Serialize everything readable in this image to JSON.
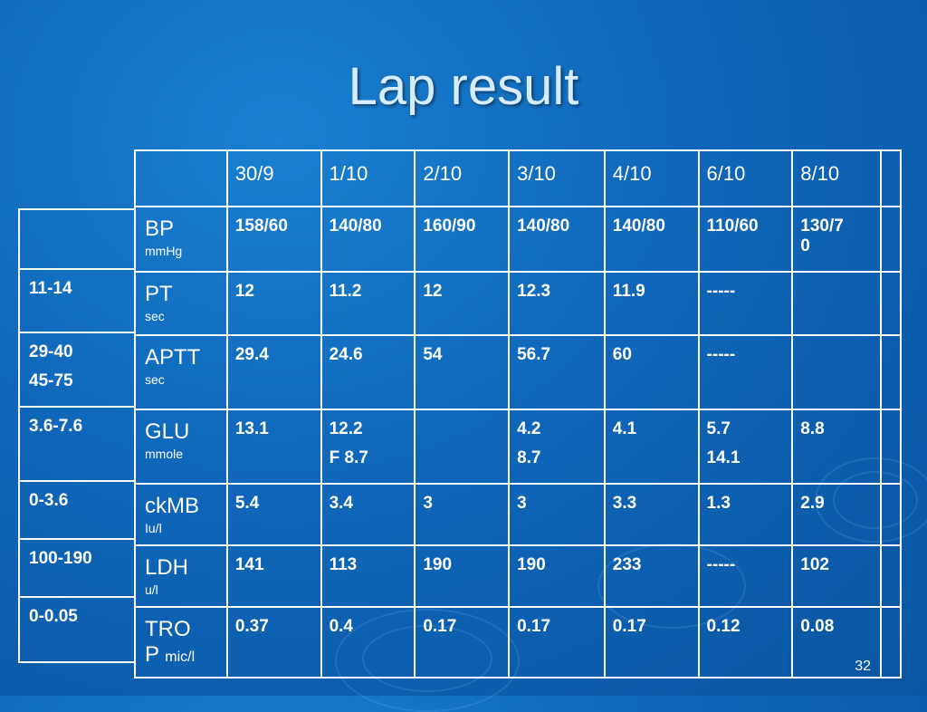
{
  "title": "Lap result",
  "page_number": "32",
  "reference": {
    "rows": [
      [
        ""
      ],
      [
        "11-14"
      ],
      [
        "29-40",
        "45-75"
      ],
      [
        "3.6-7.6"
      ],
      [
        "0-3.6"
      ],
      [
        "100-190"
      ],
      [
        "0-0.05"
      ]
    ]
  },
  "table": {
    "headers": [
      "",
      "30/9",
      "1/10",
      "2/10",
      "3/10",
      "4/10",
      "6/10",
      "8/10",
      ""
    ],
    "rows": [
      {
        "label": "BP",
        "unit": "mmHg",
        "cells": [
          [
            "158/60"
          ],
          [
            "140/80"
          ],
          [
            "160/90"
          ],
          [
            "140/80"
          ],
          [
            "140/80"
          ],
          [
            "110/60"
          ],
          [
            "130/7",
            "0"
          ],
          [
            ""
          ]
        ]
      },
      {
        "label": "PT",
        "unit": "sec",
        "cells": [
          [
            "12"
          ],
          [
            "11.2"
          ],
          [
            "12"
          ],
          [
            "12.3"
          ],
          [
            "11.9"
          ],
          [
            "-----"
          ],
          [
            ""
          ],
          [
            ""
          ]
        ]
      },
      {
        "label": "APTT",
        "unit": "sec",
        "cells": [
          [
            "29.4"
          ],
          [
            "24.6"
          ],
          [
            "54"
          ],
          [
            "56.7"
          ],
          [
            "60"
          ],
          [
            "-----"
          ],
          [
            ""
          ],
          [
            ""
          ]
        ]
      },
      {
        "label": "GLU",
        "unit": "mmole",
        "cells": [
          [
            "13.1"
          ],
          [
            "12.2",
            "F 8.7"
          ],
          [
            ""
          ],
          [
            "4.2",
            "8.7"
          ],
          [
            "4.1"
          ],
          [
            "5.7",
            "14.1"
          ],
          [
            "8.8"
          ],
          [
            ""
          ]
        ]
      },
      {
        "label": "ckMB",
        "unit": "Iu/l",
        "cells": [
          [
            "5.4"
          ],
          [
            "3.4"
          ],
          [
            "3"
          ],
          [
            "3"
          ],
          [
            "3.3"
          ],
          [
            "1.3"
          ],
          [
            "2.9"
          ],
          [
            ""
          ]
        ]
      },
      {
        "label": "LDH",
        "unit": "u/l",
        "cells": [
          [
            "141"
          ],
          [
            "113"
          ],
          [
            "190"
          ],
          [
            "190"
          ],
          [
            "233"
          ],
          [
            "-----"
          ],
          [
            "102"
          ],
          [
            ""
          ]
        ]
      },
      {
        "label": "TRO",
        "label_line2": "P",
        "unit": "mic/l",
        "cells": [
          [
            "0.37"
          ],
          [
            "0.4"
          ],
          [
            "0.17"
          ],
          [
            "0.17"
          ],
          [
            "0.17"
          ],
          [
            "0.12"
          ],
          [
            "0.08"
          ],
          [
            ""
          ]
        ]
      }
    ]
  }
}
